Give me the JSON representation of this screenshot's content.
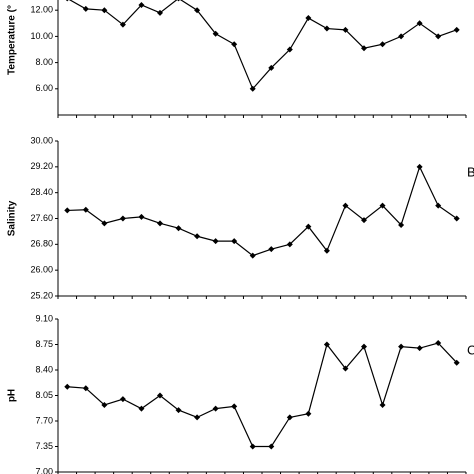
{
  "chart_data": [
    {
      "type": "line",
      "y_label": "Temperature (°",
      "ylim": [
        4,
        14
      ],
      "yticks": [
        {
          "value": 6,
          "label": "6.00"
        },
        {
          "value": 8,
          "label": "8.00"
        },
        {
          "value": 10,
          "label": "10.00"
        },
        {
          "value": 12,
          "label": "12.00"
        }
      ],
      "color": "#000000",
      "values": [
        12.9,
        12.1,
        12.0,
        10.9,
        12.4,
        11.8,
        12.9,
        12.0,
        10.2,
        9.4,
        6.0,
        7.6,
        9.0,
        11.4,
        10.6,
        10.5,
        9.1,
        9.4,
        10.0,
        11.0,
        10.0,
        10.5
      ]
    },
    {
      "type": "line",
      "y_label": "Salinity",
      "panel_label": "B",
      "ylim": [
        25.2,
        30
      ],
      "yticks": [
        {
          "value": 25.2,
          "label": "25.20"
        },
        {
          "value": 26,
          "label": "26.00"
        },
        {
          "value": 26.8,
          "label": "26.80"
        },
        {
          "value": 27.6,
          "label": "27.60"
        },
        {
          "value": 28.4,
          "label": "28.40"
        },
        {
          "value": 29.2,
          "label": "29.20"
        },
        {
          "value": 30,
          "label": "30.00"
        }
      ],
      "color": "#000000",
      "values": [
        27.85,
        27.87,
        27.45,
        27.6,
        27.65,
        27.45,
        27.3,
        27.05,
        26.9,
        26.9,
        26.45,
        26.65,
        26.8,
        27.35,
        26.6,
        28.0,
        27.55,
        28.0,
        27.4,
        29.2,
        28.0,
        27.6
      ]
    },
    {
      "type": "line",
      "y_label": "pH",
      "panel_label": "C",
      "ylim": [
        7,
        9.1
      ],
      "yticks": [
        {
          "value": 7,
          "label": "7.00"
        },
        {
          "value": 7.35,
          "label": "7.35"
        },
        {
          "value": 7.7,
          "label": "7.70"
        },
        {
          "value": 8.05,
          "label": "8.05"
        },
        {
          "value": 8.4,
          "label": "8.40"
        },
        {
          "value": 8.75,
          "label": "8.75"
        },
        {
          "value": 9.1,
          "label": "9.10"
        }
      ],
      "color": "#000000",
      "values": [
        8.17,
        8.15,
        7.92,
        8.0,
        7.87,
        8.05,
        7.85,
        7.75,
        7.87,
        7.9,
        7.35,
        7.35,
        7.75,
        7.8,
        8.75,
        8.42,
        8.72,
        7.92,
        8.72,
        8.7,
        8.77,
        8.5
      ]
    }
  ]
}
